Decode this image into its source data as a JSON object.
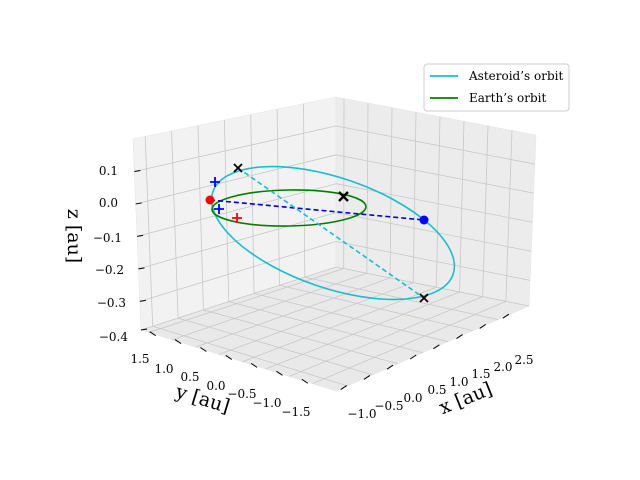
{
  "chart_data": {
    "type": "line",
    "projection": "3d",
    "axes": {
      "x": {
        "label": "x [au]",
        "ticks": [
          "−1.0",
          "−0.5",
          "0.0",
          "0.5",
          "1.0",
          "1.5",
          "2.0",
          "2.5"
        ]
      },
      "y": {
        "label": "y [au]",
        "ticks": [
          "1.5",
          "1.0",
          "0.5",
          "0.0",
          "−0.5",
          "−1.0",
          "−1.5"
        ]
      },
      "z": {
        "label": "z [au]",
        "ticks": [
          "0.1",
          "0.0",
          "−0.1",
          "−0.2",
          "−0.3",
          "−0.4"
        ]
      }
    },
    "grid": true,
    "legend": {
      "position": "top-right",
      "entries": [
        {
          "label": "Asteroid’s orbit",
          "color": "#17becf"
        },
        {
          "label": "Earth’s orbit",
          "color": "#008000"
        }
      ]
    },
    "series": [
      {
        "name": "Asteroid’s orbit",
        "color": "#17becf",
        "style": "solid"
      },
      {
        "name": "Earth’s orbit",
        "color": "#008000",
        "style": "solid"
      }
    ],
    "markers": [
      {
        "symbol": "dot",
        "color": "#ff0000"
      },
      {
        "symbol": "dot",
        "color": "#0000ff"
      },
      {
        "symbol": "plus",
        "color": "#0000ff"
      },
      {
        "symbol": "plus",
        "color": "#0000ff"
      },
      {
        "symbol": "plus",
        "color": "#ff0000"
      },
      {
        "symbol": "cross",
        "color": "#000000"
      },
      {
        "symbol": "cross",
        "color": "#000000"
      },
      {
        "symbol": "cross",
        "color": "#000000"
      }
    ],
    "connector_lines": [
      {
        "color": "#0000ff",
        "style": "dashed"
      },
      {
        "color": "#17becf",
        "style": "dashed"
      }
    ]
  }
}
